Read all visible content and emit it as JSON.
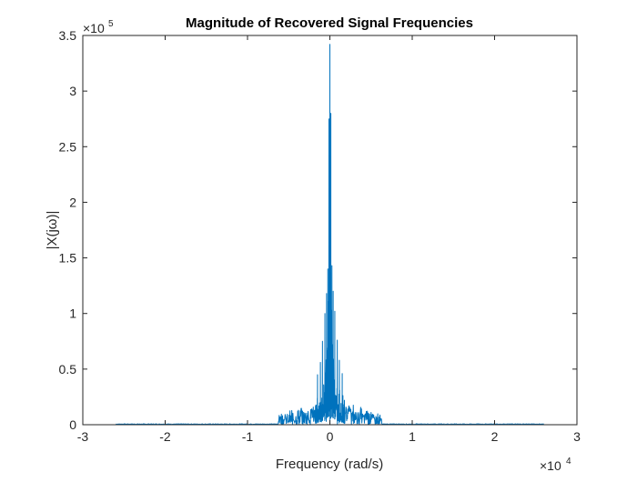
{
  "chart_data": {
    "type": "line",
    "title": "Magnitude of Recovered Signal Frequencies",
    "xlabel": "Frequency (rad/s)",
    "ylabel": "|X(jω)|",
    "x_exponent_label": "×10",
    "x_exponent": "4",
    "y_exponent_label": "×10",
    "y_exponent": "5",
    "xlim": [
      -30000,
      30000
    ],
    "ylim": [
      0,
      350000
    ],
    "x_ticks": [
      -30000,
      -20000,
      -10000,
      0,
      10000,
      20000,
      30000
    ],
    "x_tick_labels": [
      "-3",
      "-2",
      "-1",
      "0",
      "1",
      "2",
      "3"
    ],
    "y_ticks": [
      0,
      50000,
      100000,
      150000,
      200000,
      250000,
      300000,
      350000
    ],
    "y_tick_labels": [
      "0",
      "0.5",
      "1",
      "1.5",
      "2",
      "2.5",
      "3",
      "3.5"
    ],
    "grid": false,
    "line_color": "#0072BD",
    "signal_extent": [
      -26000,
      26000
    ],
    "band_edge": 6300,
    "series": [
      {
        "peaks": [
          {
            "x": 0,
            "y": 342000
          },
          {
            "x": -120,
            "y": 275000
          },
          {
            "x": 120,
            "y": 280000
          },
          {
            "x": -250,
            "y": 140000
          },
          {
            "x": 250,
            "y": 143000
          },
          {
            "x": -400,
            "y": 118000
          },
          {
            "x": 400,
            "y": 120000
          },
          {
            "x": -600,
            "y": 100000
          },
          {
            "x": 600,
            "y": 102000
          },
          {
            "x": -900,
            "y": 75000
          },
          {
            "x": 900,
            "y": 76000
          },
          {
            "x": -1150,
            "y": 56000
          },
          {
            "x": 1150,
            "y": 58000
          },
          {
            "x": -1500,
            "y": 45000
          },
          {
            "x": 1500,
            "y": 46000
          }
        ]
      }
    ]
  }
}
